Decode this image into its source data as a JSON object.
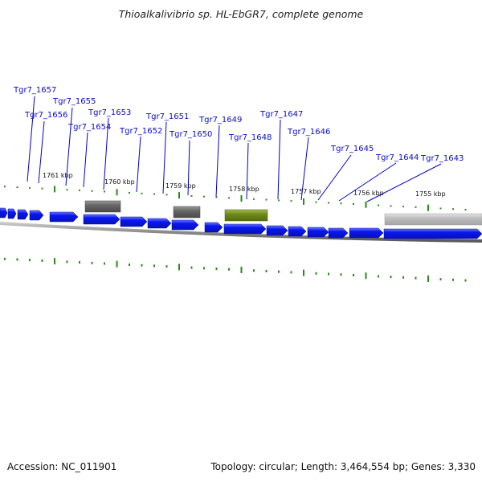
{
  "title": "Thioalkalivibrio sp. HL-EbGR7, complete genome",
  "accession": "Accession: NC_011901",
  "summary": "Topology: circular; Length: 3,464,554 bp; Genes: 3,330",
  "colors": {
    "gene_label": "#0a0acc",
    "leader_line": "#0000c8",
    "cds": "#0a17ee",
    "cds_top": "#6b78ff",
    "rna_dark": "#666666",
    "rna_green": "#6f8a1c",
    "pseudo": "#bdbdbd",
    "tick": "#2a8a1a",
    "backbone": "#777777"
  },
  "scale_labels": [
    "1761 kbp",
    "1760 kbp",
    "1759 kbp",
    "1758 kbp",
    "1757 kbp",
    "1756 kbp",
    "1755 kbp"
  ],
  "gene_labels": [
    "Tgr7_1657",
    "Tgr7_1656",
    "Tgr7_1655",
    "Tgr7_1654",
    "Tgr7_1653",
    "Tgr7_1652",
    "Tgr7_1651",
    "Tgr7_1650",
    "Tgr7_1649",
    "Tgr7_1648",
    "Tgr7_1647",
    "Tgr7_1646",
    "Tgr7_1645",
    "Tgr7_1644",
    "Tgr7_1643"
  ]
}
